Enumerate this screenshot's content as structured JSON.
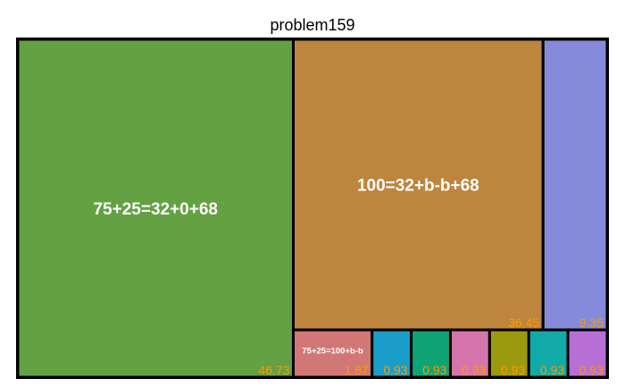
{
  "chart_data": {
    "type": "treemap",
    "title": "problem159",
    "items": [
      {
        "label": "75+25=32+0+68",
        "value": 46.73,
        "value_text": "46.73",
        "color": "#63a142"
      },
      {
        "label": "100=32+b-b+68",
        "value": 36.45,
        "value_text": "36.45",
        "color": "#bd853d"
      },
      {
        "label": "",
        "value": 9.35,
        "value_text": "9.35",
        "color": "#858ada"
      },
      {
        "label": "75+25=100+b-b",
        "value": 1.87,
        "value_text": "1.87",
        "color": "#d17876"
      },
      {
        "label": "",
        "value": 0.93,
        "value_text": "0.93",
        "color": "#1a9ec8"
      },
      {
        "label": "",
        "value": 0.93,
        "value_text": "0.93",
        "color": "#10a475"
      },
      {
        "label": "",
        "value": 0.93,
        "value_text": "0.93",
        "color": "#d675ad"
      },
      {
        "label": "",
        "value": 0.93,
        "value_text": "0.93",
        "color": "#9b9a0f"
      },
      {
        "label": "",
        "value": 0.93,
        "value_text": "0.93",
        "color": "#11aaa6"
      },
      {
        "label": "",
        "value": 0.93,
        "value_text": "0.93",
        "color": "#b86fd5"
      }
    ]
  }
}
